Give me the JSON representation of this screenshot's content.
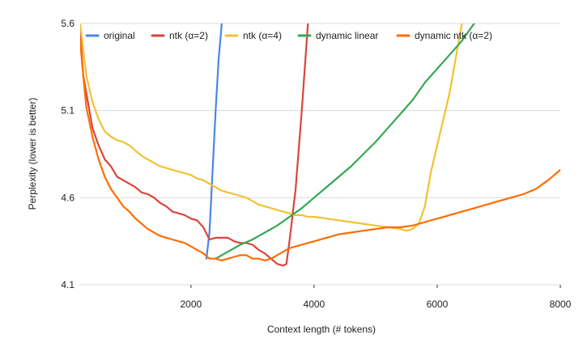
{
  "chart_data": {
    "type": "line",
    "title": "",
    "xlabel": "Context length (# tokens)",
    "ylabel": "Perplexity (lower is better)",
    "xlim": [
      200,
      8000
    ],
    "ylim": [
      4.1,
      5.6
    ],
    "xticks": [
      2000,
      4000,
      6000,
      8000
    ],
    "xtick_labels": [
      "2000",
      "4000",
      "6000",
      "8000"
    ],
    "yticks": [
      4.1,
      4.6,
      5.1,
      5.6
    ],
    "ytick_labels": [
      "4.1",
      "4.6",
      "5.1",
      "5.6"
    ],
    "grid": "horizontal",
    "legend_position": "top",
    "series": [
      {
        "name": "original",
        "color": "#4a86e8",
        "points": [
          [
            2250,
            4.25
          ],
          [
            2300,
            4.4
          ],
          [
            2350,
            4.75
          ],
          [
            2400,
            5.1
          ],
          [
            2450,
            5.4
          ],
          [
            2500,
            5.6
          ]
        ]
      },
      {
        "name": "ntk (α=2)",
        "color": "#d9453c",
        "points": [
          [
            200,
            5.55
          ],
          [
            250,
            5.3
          ],
          [
            300,
            5.2
          ],
          [
            400,
            5.0
          ],
          [
            500,
            4.9
          ],
          [
            600,
            4.82
          ],
          [
            700,
            4.78
          ],
          [
            800,
            4.72
          ],
          [
            900,
            4.7
          ],
          [
            1000,
            4.68
          ],
          [
            1100,
            4.66
          ],
          [
            1200,
            4.63
          ],
          [
            1300,
            4.62
          ],
          [
            1400,
            4.6
          ],
          [
            1500,
            4.57
          ],
          [
            1600,
            4.55
          ],
          [
            1700,
            4.52
          ],
          [
            1800,
            4.51
          ],
          [
            1900,
            4.5
          ],
          [
            2000,
            4.48
          ],
          [
            2100,
            4.47
          ],
          [
            2200,
            4.43
          ],
          [
            2300,
            4.36
          ],
          [
            2400,
            4.37
          ],
          [
            2500,
            4.37
          ],
          [
            2600,
            4.37
          ],
          [
            2700,
            4.35
          ],
          [
            2800,
            4.34
          ],
          [
            2900,
            4.34
          ],
          [
            3000,
            4.33
          ],
          [
            3100,
            4.3
          ],
          [
            3200,
            4.28
          ],
          [
            3300,
            4.25
          ],
          [
            3400,
            4.22
          ],
          [
            3500,
            4.21
          ],
          [
            3550,
            4.22
          ],
          [
            3600,
            4.35
          ],
          [
            3700,
            4.65
          ],
          [
            3800,
            5.1
          ],
          [
            3900,
            5.6
          ]
        ]
      },
      {
        "name": "ntk (α=4)",
        "color": "#f1c232",
        "points": [
          [
            200,
            5.6
          ],
          [
            300,
            5.3
          ],
          [
            400,
            5.15
          ],
          [
            500,
            5.05
          ],
          [
            600,
            4.98
          ],
          [
            700,
            4.95
          ],
          [
            800,
            4.93
          ],
          [
            900,
            4.92
          ],
          [
            1000,
            4.9
          ],
          [
            1100,
            4.87
          ],
          [
            1200,
            4.84
          ],
          [
            1300,
            4.82
          ],
          [
            1400,
            4.8
          ],
          [
            1500,
            4.78
          ],
          [
            1600,
            4.77
          ],
          [
            1700,
            4.76
          ],
          [
            1800,
            4.75
          ],
          [
            1900,
            4.74
          ],
          [
            2000,
            4.73
          ],
          [
            2100,
            4.71
          ],
          [
            2200,
            4.7
          ],
          [
            2300,
            4.68
          ],
          [
            2400,
            4.66
          ],
          [
            2500,
            4.64
          ],
          [
            2600,
            4.63
          ],
          [
            2700,
            4.62
          ],
          [
            2800,
            4.61
          ],
          [
            2900,
            4.6
          ],
          [
            3000,
            4.58
          ],
          [
            3100,
            4.56
          ],
          [
            3200,
            4.55
          ],
          [
            3300,
            4.54
          ],
          [
            3400,
            4.53
          ],
          [
            3500,
            4.52
          ],
          [
            3600,
            4.51
          ],
          [
            3700,
            4.5
          ],
          [
            3800,
            4.5
          ],
          [
            3900,
            4.49
          ],
          [
            4000,
            4.49
          ],
          [
            4200,
            4.48
          ],
          [
            4400,
            4.47
          ],
          [
            4600,
            4.46
          ],
          [
            4800,
            4.45
          ],
          [
            5000,
            4.44
          ],
          [
            5200,
            4.43
          ],
          [
            5400,
            4.42
          ],
          [
            5500,
            4.41
          ],
          [
            5600,
            4.42
          ],
          [
            5700,
            4.45
          ],
          [
            5800,
            4.55
          ],
          [
            5900,
            4.75
          ],
          [
            6000,
            4.9
          ],
          [
            6100,
            5.05
          ],
          [
            6200,
            5.2
          ],
          [
            6300,
            5.4
          ],
          [
            6400,
            5.6
          ]
        ]
      },
      {
        "name": "dynamic linear",
        "color": "#34a853",
        "points": [
          [
            2400,
            4.25
          ],
          [
            2600,
            4.29
          ],
          [
            2800,
            4.33
          ],
          [
            3000,
            4.36
          ],
          [
            3200,
            4.4
          ],
          [
            3400,
            4.44
          ],
          [
            3600,
            4.49
          ],
          [
            3800,
            4.54
          ],
          [
            4000,
            4.6
          ],
          [
            4200,
            4.66
          ],
          [
            4400,
            4.72
          ],
          [
            4600,
            4.78
          ],
          [
            4800,
            4.85
          ],
          [
            5000,
            4.92
          ],
          [
            5200,
            5.0
          ],
          [
            5400,
            5.08
          ],
          [
            5600,
            5.16
          ],
          [
            5800,
            5.26
          ],
          [
            6000,
            5.34
          ],
          [
            6200,
            5.42
          ],
          [
            6400,
            5.5
          ],
          [
            6600,
            5.6
          ]
        ]
      },
      {
        "name": "dynamic ntk (α=2)",
        "color": "#ff6d01",
        "points": [
          [
            200,
            5.5
          ],
          [
            250,
            5.3
          ],
          [
            300,
            5.12
          ],
          [
            400,
            4.95
          ],
          [
            500,
            4.82
          ],
          [
            600,
            4.72
          ],
          [
            700,
            4.65
          ],
          [
            800,
            4.6
          ],
          [
            900,
            4.55
          ],
          [
            1000,
            4.52
          ],
          [
            1100,
            4.48
          ],
          [
            1200,
            4.45
          ],
          [
            1300,
            4.42
          ],
          [
            1400,
            4.4
          ],
          [
            1500,
            4.38
          ],
          [
            1600,
            4.37
          ],
          [
            1700,
            4.36
          ],
          [
            1800,
            4.35
          ],
          [
            1900,
            4.34
          ],
          [
            2000,
            4.32
          ],
          [
            2100,
            4.3
          ],
          [
            2200,
            4.28
          ],
          [
            2300,
            4.25
          ],
          [
            2400,
            4.25
          ],
          [
            2500,
            4.24
          ],
          [
            2600,
            4.25
          ],
          [
            2700,
            4.26
          ],
          [
            2800,
            4.27
          ],
          [
            2900,
            4.27
          ],
          [
            3000,
            4.25
          ],
          [
            3100,
            4.25
          ],
          [
            3200,
            4.24
          ],
          [
            3300,
            4.25
          ],
          [
            3400,
            4.27
          ],
          [
            3500,
            4.29
          ],
          [
            3600,
            4.31
          ],
          [
            3700,
            4.32
          ],
          [
            3800,
            4.33
          ],
          [
            3900,
            4.34
          ],
          [
            4000,
            4.35
          ],
          [
            4200,
            4.37
          ],
          [
            4400,
            4.39
          ],
          [
            4600,
            4.4
          ],
          [
            4800,
            4.41
          ],
          [
            5000,
            4.42
          ],
          [
            5200,
            4.43
          ],
          [
            5400,
            4.43
          ],
          [
            5600,
            4.44
          ],
          [
            5800,
            4.46
          ],
          [
            6000,
            4.48
          ],
          [
            6200,
            4.5
          ],
          [
            6400,
            4.52
          ],
          [
            6600,
            4.54
          ],
          [
            6800,
            4.56
          ],
          [
            7000,
            4.58
          ],
          [
            7200,
            4.6
          ],
          [
            7400,
            4.62
          ],
          [
            7600,
            4.65
          ],
          [
            7800,
            4.7
          ],
          [
            8000,
            4.76
          ]
        ]
      }
    ]
  }
}
